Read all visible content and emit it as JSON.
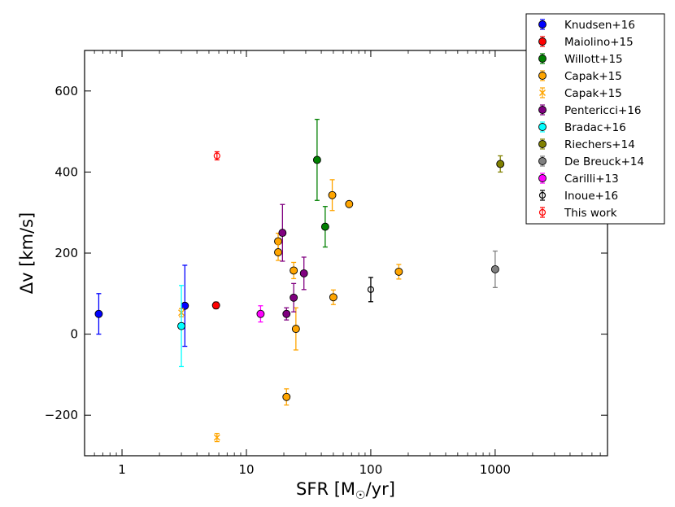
{
  "chart_data": {
    "type": "scatter",
    "title": "",
    "xlabel": "SFR [M",
    "xlabel_sub": "☉",
    "xlabel_suffix": "/yr]",
    "ylabel": "Δv [km/s]",
    "xscale": "log",
    "xlim": [
      0.5,
      8000
    ],
    "ylim": [
      -300,
      700
    ],
    "xticks": [
      {
        "value": 1,
        "label": "1"
      },
      {
        "value": 10,
        "label": "10"
      },
      {
        "value": 100,
        "label": "100"
      },
      {
        "value": 1000,
        "label": "1000"
      }
    ],
    "yticks": [
      {
        "value": -200,
        "label": "−200"
      },
      {
        "value": 0,
        "label": "0"
      },
      {
        "value": 200,
        "label": "200"
      },
      {
        "value": 400,
        "label": "400"
      },
      {
        "value": 600,
        "label": "600"
      }
    ],
    "legend_position": "top-right",
    "series": [
      {
        "name": "Knudsen+16",
        "color": "#0000ff",
        "marker": "filled-circle",
        "points": [
          {
            "x": 0.65,
            "y": 50,
            "err": 50
          },
          {
            "x": 3.2,
            "y": 70,
            "err": 100
          }
        ]
      },
      {
        "name": "Maiolino+15",
        "color": "#ff0000",
        "marker": "filled-circle",
        "points": [
          {
            "x": 5.7,
            "y": 71,
            "err": 8
          }
        ]
      },
      {
        "name": "Willott+15",
        "color": "#008000",
        "marker": "filled-circle",
        "points": [
          {
            "x": 37,
            "y": 430,
            "err": 100
          },
          {
            "x": 43,
            "y": 265,
            "err": 50
          }
        ]
      },
      {
        "name": "Capak+15",
        "color": "#ffa500",
        "marker": "filled-circle",
        "points": [
          {
            "x": 18,
            "y": 229,
            "err": 20
          },
          {
            "x": 18,
            "y": 202,
            "err": 20
          },
          {
            "x": 24,
            "y": 157,
            "err": 20
          },
          {
            "x": 25,
            "y": 13,
            "err": 52
          },
          {
            "x": 21,
            "y": -155,
            "err": 20
          },
          {
            "x": 49,
            "y": 343,
            "err": 38
          },
          {
            "x": 50,
            "y": 91,
            "err": 18
          },
          {
            "x": 67,
            "y": 321,
            "err": 6
          },
          {
            "x": 168,
            "y": 154,
            "err": 18
          }
        ]
      },
      {
        "name": "Capak+15",
        "color": "#ffa500",
        "marker": "x",
        "points": [
          {
            "x": 3.0,
            "y": 53,
            "err": 10
          },
          {
            "x": 5.8,
            "y": -255,
            "err": 10
          }
        ]
      },
      {
        "name": "Pentericci+16",
        "color": "#800080",
        "marker": "filled-circle",
        "points": [
          {
            "x": 19.5,
            "y": 250,
            "err": 70
          },
          {
            "x": 21,
            "y": 50,
            "err": 15
          },
          {
            "x": 24,
            "y": 90,
            "err": 35
          },
          {
            "x": 29,
            "y": 150,
            "err": 40
          }
        ]
      },
      {
        "name": "Bradac+16",
        "color": "#00ffff",
        "marker": "filled-circle",
        "points": [
          {
            "x": 3.0,
            "y": 20,
            "err": 100
          }
        ]
      },
      {
        "name": "Riechers+14",
        "color": "#808000",
        "marker": "filled-circle",
        "points": [
          {
            "x": 1100,
            "y": 420,
            "err": 20
          }
        ]
      },
      {
        "name": "De Breuck+14",
        "color": "#808080",
        "marker": "filled-circle",
        "points": [
          {
            "x": 1000,
            "y": 160,
            "err": 45
          }
        ]
      },
      {
        "name": "Carilli+13",
        "color": "#ff00ff",
        "marker": "filled-circle",
        "points": [
          {
            "x": 13,
            "y": 50,
            "err": 20
          }
        ]
      },
      {
        "name": "Inoue+16",
        "color": "#000000",
        "marker": "open-circle",
        "points": [
          {
            "x": 100,
            "y": 110,
            "err": 30
          }
        ]
      },
      {
        "name": "This work",
        "color": "#ff0000",
        "marker": "open-circle",
        "points": [
          {
            "x": 5.8,
            "y": 440,
            "err": 10
          }
        ]
      }
    ]
  }
}
